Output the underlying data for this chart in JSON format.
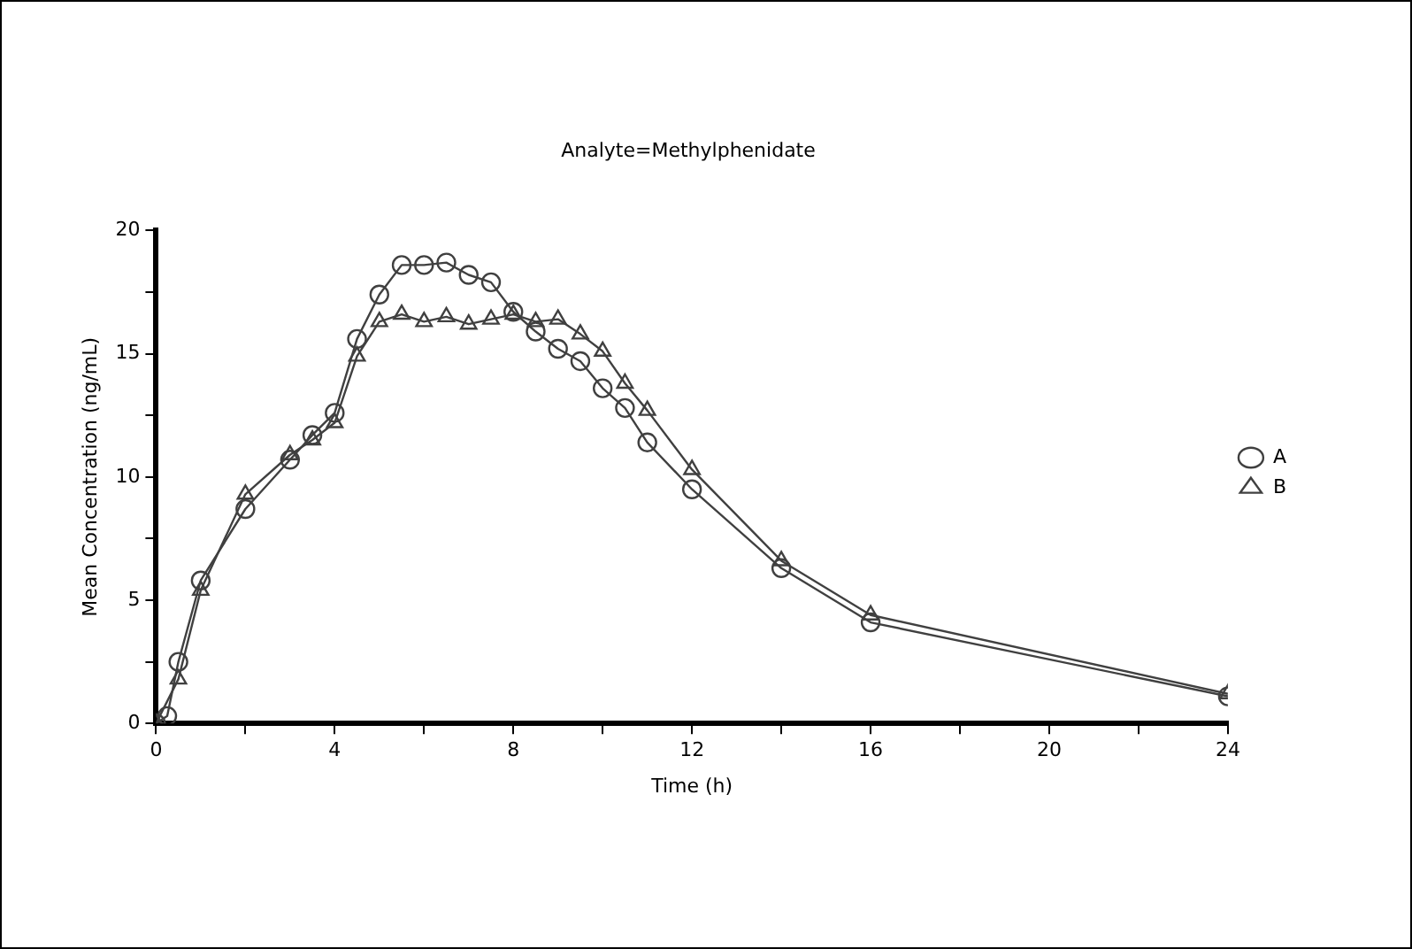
{
  "chart_data": {
    "type": "line",
    "title": "Analyte=Methylphenidate",
    "xlabel": "Time (h)",
    "ylabel": "Mean Concentration (ng/mL)",
    "x": [
      0,
      0.25,
      0.5,
      1,
      2,
      3,
      3.5,
      4,
      4.5,
      5,
      5.5,
      6,
      6.5,
      7,
      7.5,
      8,
      8.5,
      9,
      9.5,
      10,
      10.5,
      11,
      12,
      14,
      16,
      24
    ],
    "series": [
      {
        "name": "A",
        "color": "#404040",
        "marker": "circle",
        "values": [
          0,
          0.3,
          2.5,
          5.8,
          8.7,
          10.7,
          11.7,
          12.6,
          15.6,
          17.4,
          18.6,
          18.6,
          18.7,
          18.2,
          17.9,
          16.7,
          15.9,
          15.2,
          14.7,
          13.6,
          12.8,
          11.4,
          9.5,
          6.3,
          4.1,
          1.1
        ]
      },
      {
        "name": "B",
        "color": "#404040",
        "marker": "triangle",
        "values": [
          0,
          null,
          1.8,
          5.4,
          9.3,
          10.9,
          11.5,
          12.2,
          14.9,
          16.3,
          16.6,
          16.3,
          16.5,
          16.2,
          16.4,
          16.6,
          16.3,
          16.4,
          15.8,
          15.1,
          13.8,
          12.7,
          10.3,
          6.6,
          4.4,
          1.2
        ]
      }
    ],
    "xlim": [
      0,
      24
    ],
    "xticks": [
      0,
      {
        "value": 2,
        "label": null
      },
      4,
      {
        "value": 6,
        "label": null
      },
      8,
      {
        "value": 10,
        "label": null
      },
      12,
      {
        "value": 14,
        "label": null
      },
      16,
      {
        "value": 18,
        "label": null
      },
      20,
      {
        "value": 22,
        "label": null
      },
      24
    ],
    "ylim": [
      0,
      20
    ],
    "yticks": [
      0,
      {
        "value": 2.5,
        "label": null
      },
      5,
      {
        "value": 7.5,
        "label": null
      },
      10,
      {
        "value": 12.5,
        "label": null
      },
      15,
      {
        "value": 17.5,
        "label": null
      },
      20
    ],
    "grid": false,
    "legend": "right",
    "line_style": "solid"
  }
}
